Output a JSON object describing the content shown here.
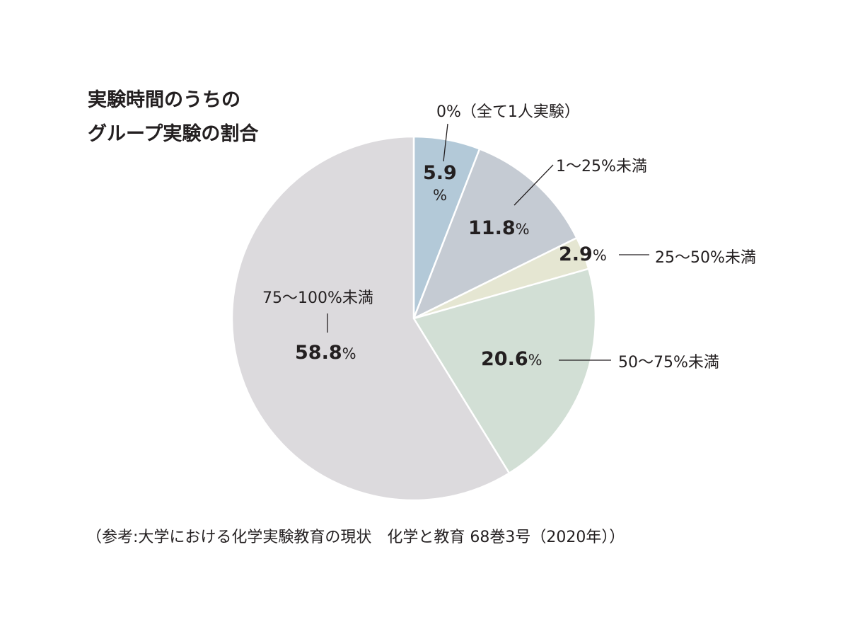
{
  "chart_data": {
    "type": "pie",
    "title_lines": [
      "実験時間のうちの",
      "グループ実験の割合"
    ],
    "start": "top",
    "direction": "clockwise",
    "slices": [
      {
        "label": "0%（全て1人実験）",
        "value": 5.9,
        "value_text": "5.9",
        "color": "#b3c9d8"
      },
      {
        "label": "1〜25%未満",
        "value": 11.8,
        "value_text": "11.8",
        "color": "#c5cbd3"
      },
      {
        "label": "25〜50%未満",
        "value": 2.9,
        "value_text": "2.9",
        "color": "#e5e6d2"
      },
      {
        "label": "50〜75%未満",
        "value": 20.6,
        "value_text": "20.6",
        "color": "#d2dfd5"
      },
      {
        "label": "75〜100%未満",
        "value": 58.8,
        "value_text": "58.8",
        "color": "#dcdadd"
      }
    ],
    "percent_sign": "%",
    "source": "（参考:大学における化学実験教育の現状　化学と教育 68巻3号（2020年））"
  }
}
